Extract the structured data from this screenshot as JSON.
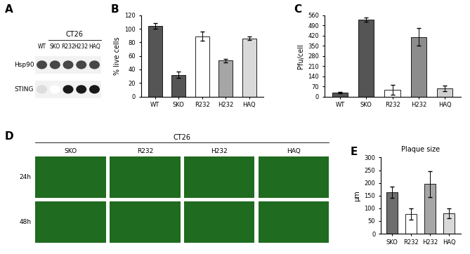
{
  "chart_data": [
    {
      "type": "blot",
      "panel": "A",
      "title": "CT26",
      "categories": [
        "WT",
        "SKO",
        "R232",
        "H232",
        "HAQ"
      ],
      "series": [
        {
          "name": "Hsp90",
          "values": [
            0.8,
            0.8,
            0.8,
            0.8,
            0.8
          ]
        },
        {
          "name": "STING",
          "values": [
            0.15,
            0,
            1,
            1,
            1
          ]
        }
      ]
    },
    {
      "type": "bar",
      "panel": "B",
      "categories": [
        "WT",
        "SKO",
        "R232",
        "H232",
        "HAQ"
      ],
      "values": [
        104,
        32,
        89,
        53,
        86
      ],
      "errors": [
        4,
        5,
        7,
        3,
        3
      ],
      "colors": [
        "#555555",
        "#555555",
        "#ffffff",
        "#a6a6a6",
        "#d9d9d9"
      ],
      "y_label": "% live cells",
      "ylim": [
        0,
        120
      ],
      "yticks": [
        0,
        20,
        40,
        60,
        80,
        100,
        120
      ]
    },
    {
      "type": "bar",
      "panel": "C",
      "categories": [
        "WT",
        "SKO",
        "R232",
        "H232",
        "HAQ"
      ],
      "values": [
        25,
        530,
        45,
        410,
        55
      ],
      "errors": [
        5,
        15,
        35,
        60,
        20
      ],
      "colors": [
        "#555555",
        "#555555",
        "#ffffff",
        "#8c8c8c",
        "#d0d0d0"
      ],
      "y_label": "Pfu/cell",
      "ylim": [
        0,
        560
      ],
      "yticks": [
        0,
        70,
        140,
        210,
        280,
        350,
        420,
        490,
        560
      ]
    },
    {
      "type": "image_grid",
      "panel": "D",
      "title": "CT26",
      "columns": [
        "SKO",
        "R232",
        "H232",
        "HAQ"
      ],
      "rows": [
        "24h",
        "48h"
      ]
    },
    {
      "type": "bar",
      "panel": "E",
      "title": "Plaque size",
      "categories": [
        "SKO",
        "R232",
        "H232",
        "HAQ"
      ],
      "values": [
        163,
        78,
        195,
        80
      ],
      "errors": [
        22,
        22,
        52,
        20
      ],
      "colors": [
        "#6e6e6e",
        "#ffffff",
        "#a6a6a6",
        "#d9d9d9"
      ],
      "y_label": "µm",
      "ylim": [
        0,
        300
      ],
      "yticks": [
        0,
        50,
        100,
        150,
        200,
        250,
        300
      ]
    }
  ]
}
